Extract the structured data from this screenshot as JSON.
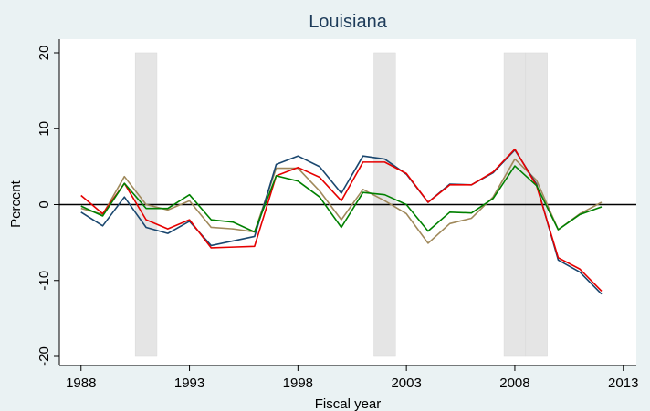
{
  "chart_data": {
    "type": "line",
    "title": "Louisiana",
    "xlabel": "Fiscal year",
    "ylabel": "Percent",
    "x": [
      1988,
      1989,
      1990,
      1991,
      1992,
      1993,
      1994,
      1995,
      1996,
      1997,
      1998,
      1999,
      2000,
      2001,
      2002,
      2003,
      2004,
      2005,
      2006,
      2007,
      2008,
      2009,
      2010,
      2011,
      2012
    ],
    "series": [
      {
        "color": "#a0895b",
        "values": [
          -0.5,
          -1.3,
          3.7,
          0,
          -0.7,
          0.5,
          -3,
          -3.2,
          -3.6,
          4.8,
          4.8,
          1.8,
          -2,
          2,
          0.5,
          -1.2,
          -5.1,
          -2.5,
          -1.8,
          1,
          6,
          3.2,
          -3.3,
          -1.2,
          0.3
        ]
      },
      {
        "color": "#1a476f",
        "values": [
          -1,
          -2.8,
          1,
          -3,
          -3.8,
          -2.2,
          -5.4,
          -4.8,
          -4.2,
          5.3,
          6.4,
          5,
          1.5,
          6.4,
          6,
          4,
          0.3,
          2.7,
          2.6,
          4.2,
          7.2,
          2.7,
          -7.3,
          -8.9,
          -11.8
        ]
      },
      {
        "color": "#e60000",
        "values": [
          1.2,
          -1.2,
          2.8,
          -2,
          -3.2,
          -2,
          -5.7,
          -5.6,
          -5.5,
          3.8,
          4.9,
          3.6,
          0.5,
          5.6,
          5.6,
          4.1,
          0.3,
          2.6,
          2.6,
          4.3,
          7.3,
          2.5,
          -7,
          -8.5,
          -11.4
        ]
      },
      {
        "color": "#008000",
        "values": [
          -0.2,
          -1.5,
          2.8,
          -0.5,
          -0.5,
          1.3,
          -2,
          -2.3,
          -3.6,
          3.8,
          3.1,
          1,
          -3,
          1.6,
          1.3,
          0,
          -3.5,
          -1,
          -1.1,
          0.8,
          5.1,
          2.5,
          -3.3,
          -1.3,
          -0.3
        ]
      }
    ],
    "shaded_periods": [
      [
        1990.5,
        1991.5
      ],
      [
        2001.5,
        2002.5
      ],
      [
        2007.5,
        2008.5
      ],
      [
        2008.5,
        2009.5
      ]
    ],
    "shade_range": [
      -20,
      20
    ],
    "hline": 0,
    "xlim": [
      1987,
      2013.6
    ],
    "ylim": [
      -21.2,
      21.8
    ],
    "xticks": [
      1988,
      1993,
      1998,
      2003,
      2008,
      2013
    ],
    "yticks": [
      -20,
      -10,
      0,
      10,
      20
    ]
  }
}
